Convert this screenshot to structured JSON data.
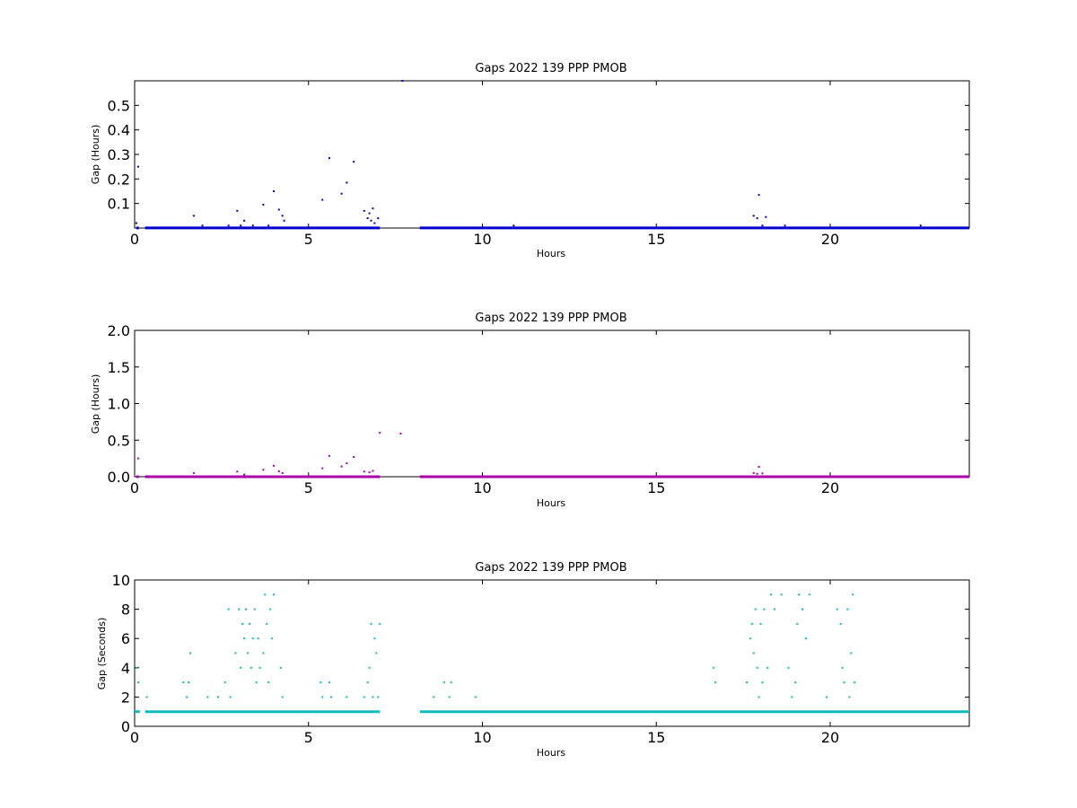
{
  "chart_data": [
    {
      "type": "scatter",
      "title": "Gaps 2022 139 PPP  PMOB",
      "xlabel": "Hours",
      "ylabel": "Gap (Hours)",
      "xlim": [
        0,
        24
      ],
      "ylim": [
        0,
        0.6
      ],
      "xticks": [
        0,
        5,
        10,
        15,
        20
      ],
      "yticks": [
        0.1,
        0.2,
        0.3,
        0.4,
        0.5
      ],
      "ytick_labels": [
        "0.1",
        "0.2",
        "0.3",
        "0.4",
        "0.5"
      ],
      "color": "#0000cc",
      "baseline": {
        "value": 0.0003,
        "segments": [
          [
            0.05,
            0.12
          ],
          [
            0.3,
            7.05
          ],
          [
            8.2,
            24
          ]
        ]
      },
      "series": [
        {
          "x": [
            0.05,
            0.1,
            1.7,
            1.95,
            2.7,
            2.95,
            3.05,
            3.15,
            3.4,
            3.7,
            3.85,
            4.0,
            4.15,
            4.25,
            4.3,
            5.4,
            5.6,
            5.95,
            6.1,
            6.3,
            6.6,
            6.7,
            6.75,
            6.8,
            6.85,
            6.9,
            7.0,
            7.7,
            10.9,
            17.8,
            17.9,
            17.95,
            18.05,
            18.15,
            18.7,
            22.6
          ],
          "y": [
            0.02,
            0.25,
            0.05,
            0.01,
            0.01,
            0.07,
            0.01,
            0.03,
            0.01,
            0.095,
            0.01,
            0.15,
            0.075,
            0.05,
            0.03,
            0.115,
            0.285,
            0.14,
            0.185,
            0.27,
            0.07,
            0.04,
            0.06,
            0.03,
            0.08,
            0.02,
            0.04,
            0.6,
            0.01,
            0.05,
            0.04,
            0.135,
            0.01,
            0.045,
            0.01,
            0.01
          ]
        }
      ]
    },
    {
      "type": "scatter",
      "title": "Gaps 2022 139 PPP  PMOB",
      "xlabel": "Hours",
      "ylabel": "Gap (Hours)",
      "xlim": [
        0,
        24
      ],
      "ylim": [
        0,
        2
      ],
      "xticks": [
        0,
        5,
        10,
        15,
        20
      ],
      "yticks": [
        0,
        0.5,
        1,
        1.5,
        2
      ],
      "ytick_labels": [
        "0.0",
        "0.5",
        "1.0",
        "1.5",
        "2.0"
      ],
      "color": "#aa00aa",
      "baseline": {
        "value": 0.0003,
        "segments": [
          [
            0.05,
            0.12
          ],
          [
            0.3,
            7.05
          ],
          [
            8.2,
            24
          ]
        ]
      },
      "series": [
        {
          "x": [
            0.1,
            1.7,
            2.95,
            3.15,
            3.7,
            4.0,
            4.15,
            4.25,
            5.4,
            5.6,
            5.95,
            6.1,
            6.3,
            6.6,
            6.75,
            6.85,
            7.05,
            7.65,
            17.8,
            17.9,
            17.95,
            18.05
          ],
          "y": [
            0.25,
            0.05,
            0.07,
            0.03,
            0.095,
            0.15,
            0.075,
            0.05,
            0.115,
            0.285,
            0.14,
            0.185,
            0.27,
            0.07,
            0.06,
            0.08,
            0.6,
            0.59,
            0.05,
            0.04,
            0.135,
            0.045
          ]
        }
      ]
    },
    {
      "type": "scatter",
      "title": "Gaps 2022 139 PPP  PMOB",
      "xlabel": "Hours",
      "ylabel": "Gap (Seconds)",
      "xlim": [
        0,
        24
      ],
      "ylim": [
        0,
        10
      ],
      "xticks": [
        0,
        5,
        10,
        15,
        20
      ],
      "yticks": [
        0,
        2,
        4,
        6,
        8,
        10
      ],
      "ytick_labels": [
        "0",
        "2",
        "4",
        "6",
        "8",
        "10"
      ],
      "color": "#11bbbb",
      "baseline": {
        "value": 1,
        "segments": [
          [
            0,
            0.15
          ],
          [
            0.3,
            7.05
          ],
          [
            8.2,
            24
          ]
        ]
      },
      "series": [
        {
          "x": [
            0.05,
            0.1,
            0.35,
            1.4,
            1.5,
            1.55,
            1.6,
            2.1,
            2.4,
            2.6,
            2.7,
            2.75,
            2.9,
            3.0,
            3.05,
            3.1,
            3.15,
            3.2,
            3.25,
            3.3,
            3.35,
            3.4,
            3.45,
            3.5,
            3.55,
            3.6,
            3.7,
            3.75,
            3.8,
            3.85,
            3.9,
            3.95,
            4.0,
            4.2,
            4.25,
            5.35,
            5.4,
            5.6,
            5.65,
            6.1,
            6.6,
            6.7,
            6.75,
            6.8,
            6.85,
            6.9,
            6.95,
            7.0,
            7.05,
            8.6,
            8.9,
            9.05,
            9.1,
            9.8,
            16.65,
            16.7,
            17.6,
            17.7,
            17.75,
            17.8,
            17.85,
            17.9,
            17.95,
            18.0,
            18.05,
            18.1,
            18.2,
            18.3,
            18.4,
            18.6,
            18.8,
            18.9,
            19.0,
            19.05,
            19.1,
            19.2,
            19.3,
            19.4,
            19.9,
            20.2,
            20.3,
            20.35,
            20.4,
            20.5,
            20.55,
            20.6,
            20.65,
            20.7
          ],
          "y": [
            4,
            3,
            2,
            3,
            2,
            3,
            5,
            2,
            2,
            3,
            8,
            2,
            5,
            8,
            4,
            7,
            6,
            8,
            5,
            7,
            4,
            6,
            8,
            3,
            6,
            4,
            5,
            9,
            7,
            3,
            8,
            6,
            9,
            4,
            2,
            3,
            2,
            3,
            2,
            2,
            2,
            3,
            4,
            7,
            2,
            6,
            5,
            2,
            7,
            2,
            3,
            2,
            3,
            2,
            4,
            3,
            3,
            6,
            7,
            5,
            8,
            4,
            2,
            7,
            3,
            8,
            4,
            9,
            8,
            9,
            4,
            2,
            3,
            7,
            9,
            8,
            6,
            9,
            2,
            8,
            7,
            4,
            3,
            8,
            2,
            5,
            9,
            3
          ]
        }
      ]
    }
  ]
}
